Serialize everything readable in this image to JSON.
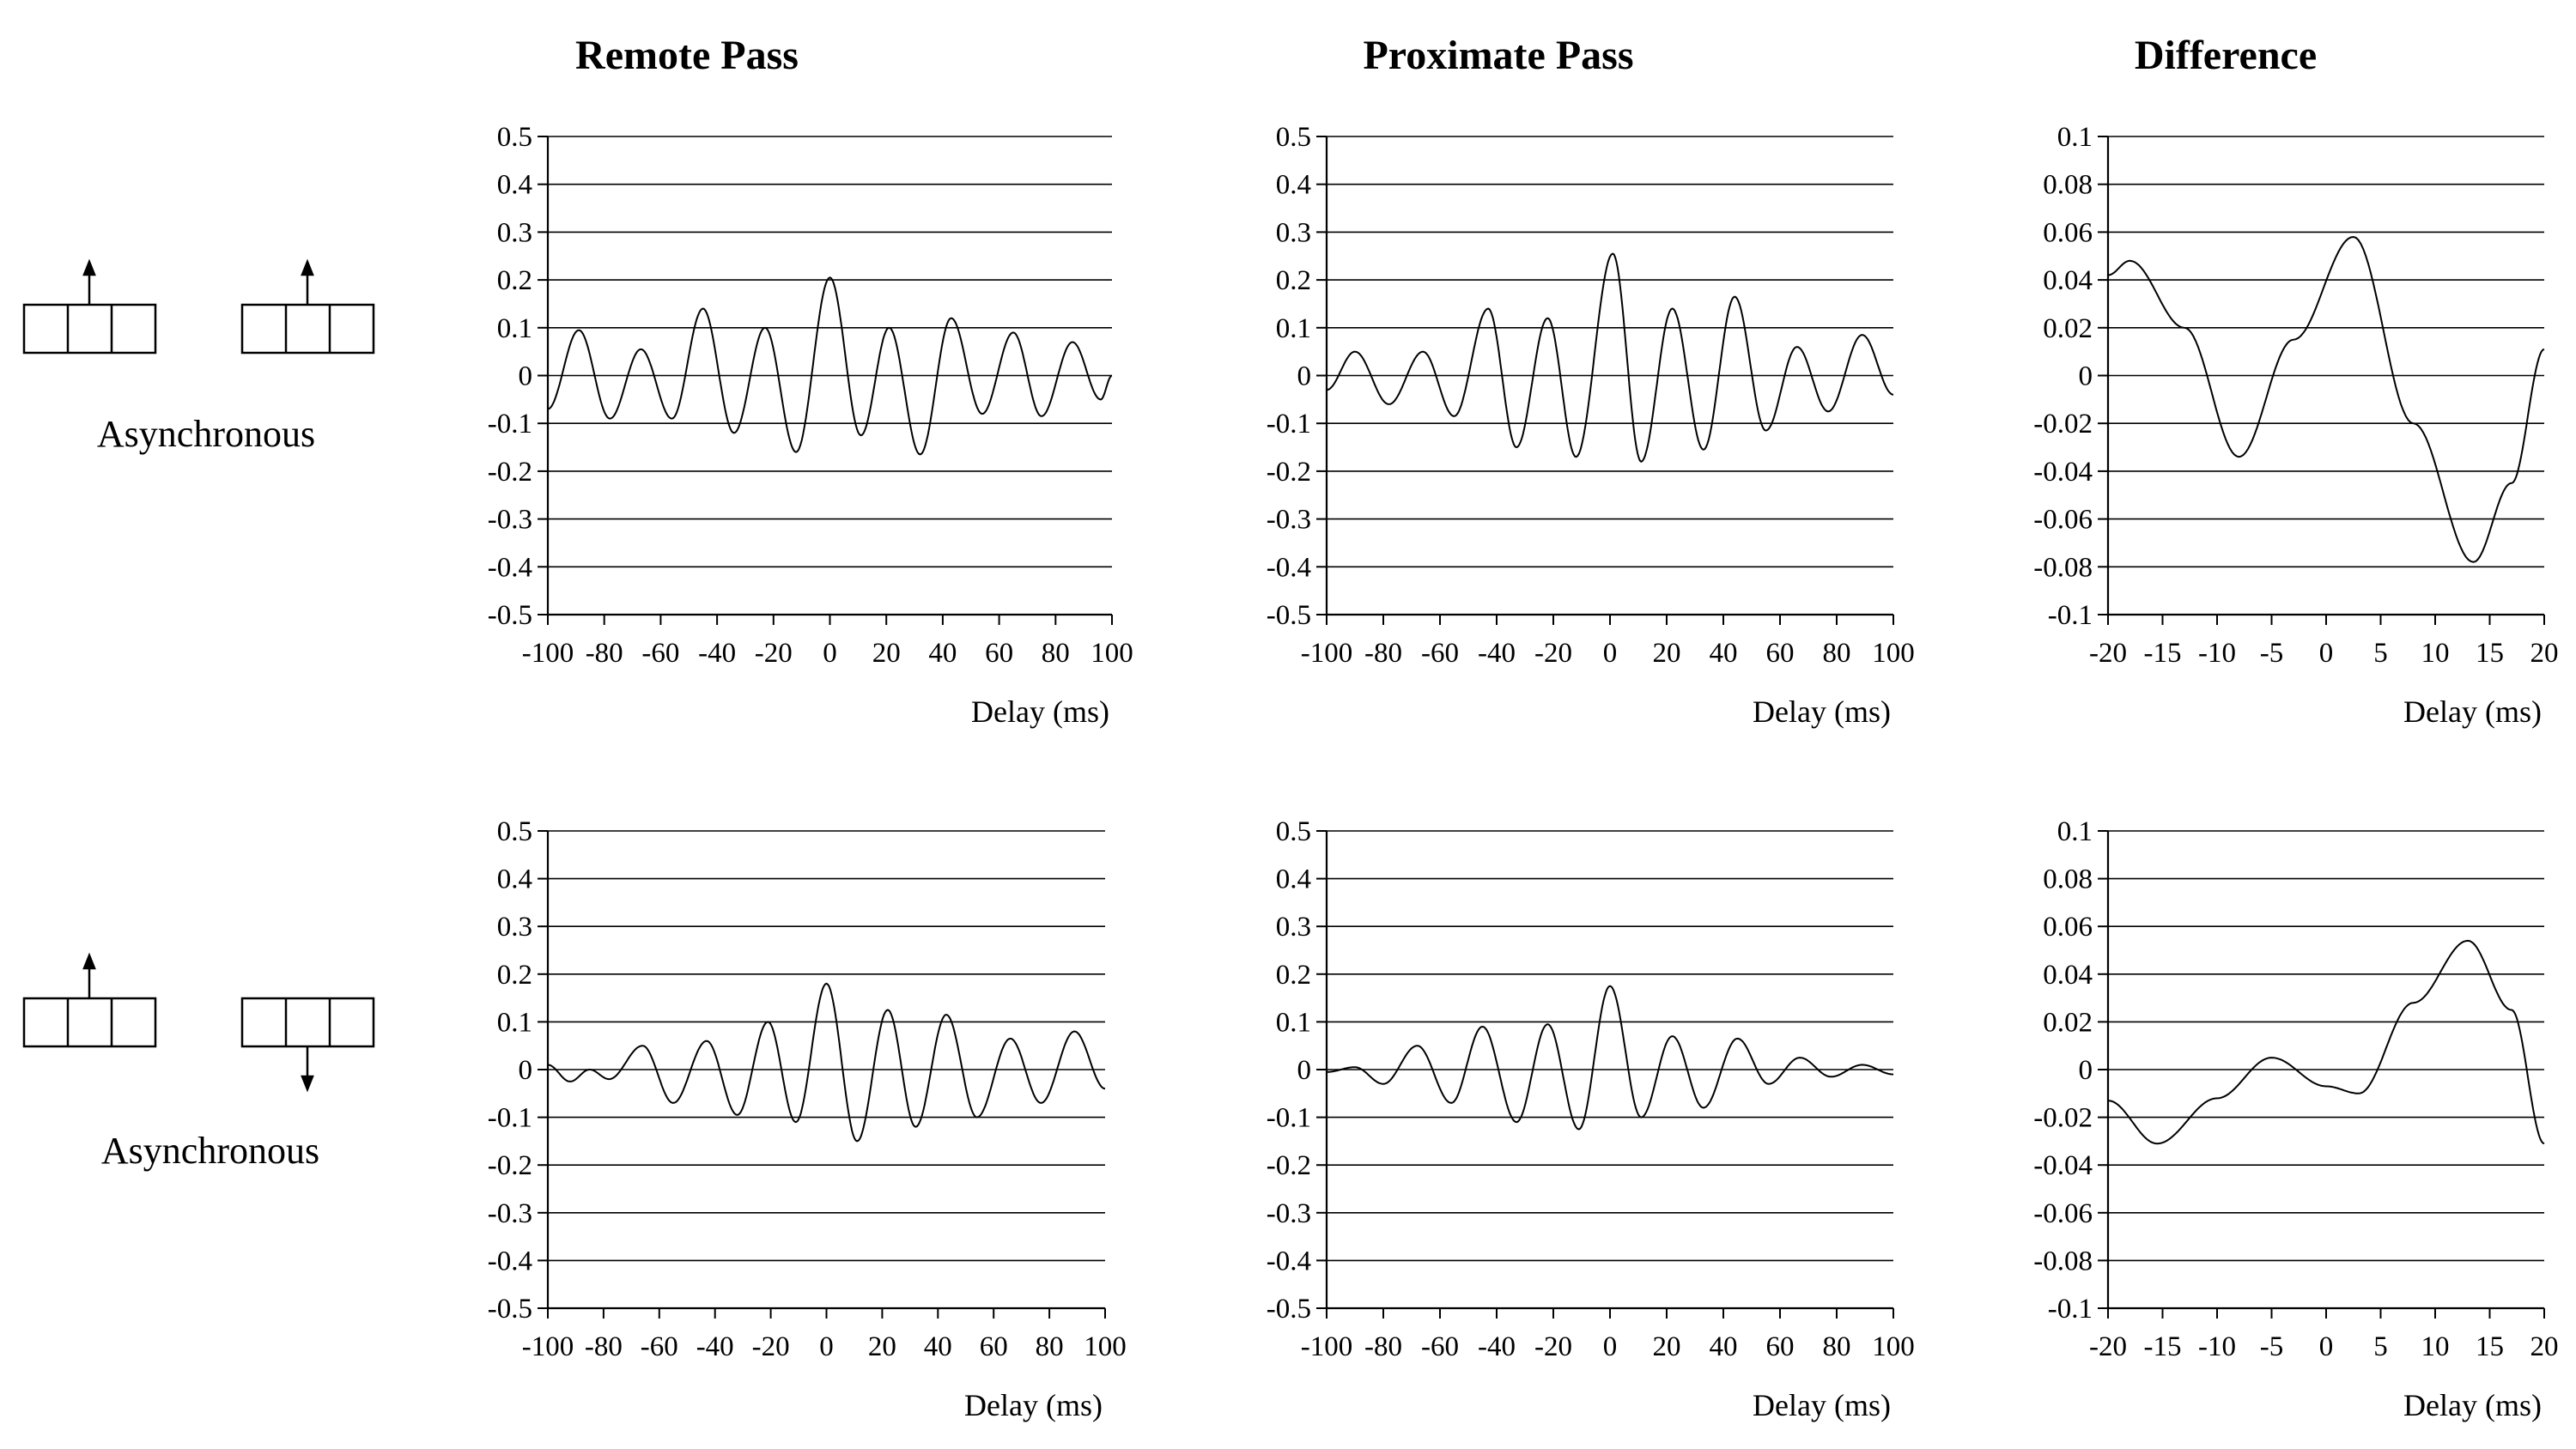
{
  "column_titles": [
    "Remote Pass",
    "Proximate Pass",
    "Difference"
  ],
  "row_labels": [
    "Asynchronous",
    "Asynchronous"
  ],
  "icons": [
    "cell-pair-both-up-arrows-icon",
    "cell-pair-up-down-arrows-icon"
  ],
  "chart_data": [
    {
      "type": "line",
      "title": "Remote Pass",
      "xlabel": "Delay (ms)",
      "ylabel": "",
      "xlim": [
        -100,
        100
      ],
      "ylim": [
        -0.5,
        0.5
      ],
      "xticks": [
        -100,
        -80,
        -60,
        -40,
        -20,
        0,
        20,
        40,
        60,
        80,
        100
      ],
      "yticks": [
        0.5,
        0.4,
        0.3,
        0.2,
        0.1,
        0,
        -0.1,
        -0.2,
        -0.3,
        -0.4,
        -0.5
      ],
      "grid": "horizontal",
      "series": [
        {
          "x": [
            -100,
            -89,
            -78,
            -67,
            -56,
            -45,
            -34,
            -23,
            -12,
            0,
            11,
            21,
            32,
            43,
            54,
            65,
            75,
            86,
            96,
            100
          ],
          "y": [
            -0.07,
            0.095,
            -0.09,
            0.055,
            -0.09,
            0.14,
            -0.12,
            0.1,
            -0.16,
            0.205,
            -0.125,
            0.1,
            -0.165,
            0.12,
            -0.08,
            0.09,
            -0.085,
            0.07,
            -0.05,
            0.0
          ]
        }
      ]
    },
    {
      "type": "line",
      "title": "Proximate Pass",
      "xlabel": "Delay (ms)",
      "ylabel": "",
      "xlim": [
        -100,
        100
      ],
      "ylim": [
        -0.5,
        0.5
      ],
      "xticks": [
        -100,
        -80,
        -60,
        -40,
        -20,
        0,
        20,
        40,
        60,
        80,
        100
      ],
      "yticks": [
        0.5,
        0.4,
        0.3,
        0.2,
        0.1,
        0,
        -0.1,
        -0.2,
        -0.3,
        -0.4,
        -0.5
      ],
      "grid": "horizontal",
      "series": [
        {
          "x": [
            -100,
            -90,
            -78,
            -66,
            -55,
            -43,
            -33,
            -22,
            -12,
            1,
            11,
            22,
            33,
            44,
            55,
            66,
            77,
            89,
            100
          ],
          "y": [
            -0.03,
            0.05,
            -0.06,
            0.05,
            -0.085,
            0.14,
            -0.15,
            0.12,
            -0.17,
            0.255,
            -0.18,
            0.14,
            -0.155,
            0.165,
            -0.115,
            0.06,
            -0.075,
            0.085,
            -0.04
          ]
        }
      ]
    },
    {
      "type": "line",
      "title": "Difference",
      "xlabel": "Delay (ms)",
      "ylabel": "",
      "xlim": [
        -20,
        20
      ],
      "ylim": [
        -0.1,
        0.1
      ],
      "xticks": [
        -20,
        -15,
        -10,
        -5,
        0,
        5,
        10,
        15,
        20
      ],
      "yticks": [
        0.1,
        0.08,
        0.06,
        0.04,
        0.02,
        0,
        -0.02,
        -0.04,
        -0.06,
        -0.08,
        -0.1
      ],
      "grid": "horizontal",
      "series": [
        {
          "x": [
            -20,
            -18,
            -13,
            -8,
            -3,
            2.5,
            8,
            13.5,
            17,
            20
          ],
          "y": [
            0.042,
            0.048,
            0.02,
            -0.034,
            0.015,
            0.058,
            -0.02,
            -0.078,
            -0.045,
            0.011
          ]
        }
      ]
    },
    {
      "type": "line",
      "title": "",
      "xlabel": "Delay (ms)",
      "ylabel": "",
      "xlim": [
        -100,
        100
      ],
      "ylim": [
        -0.5,
        0.5
      ],
      "xticks": [
        -100,
        -80,
        -60,
        -40,
        -20,
        0,
        20,
        40,
        60,
        80,
        100
      ],
      "yticks": [
        0.5,
        0.4,
        0.3,
        0.2,
        0.1,
        0,
        -0.1,
        -0.2,
        -0.3,
        -0.4,
        -0.5
      ],
      "grid": "horizontal",
      "series": [
        {
          "x": [
            -100,
            -92,
            -85,
            -78,
            -66,
            -55,
            -43,
            -32,
            -21,
            -11,
            0,
            11,
            22,
            32,
            43,
            54,
            66,
            77,
            89,
            100
          ],
          "y": [
            0.01,
            -0.025,
            0.0,
            -0.02,
            0.05,
            -0.07,
            0.06,
            -0.095,
            0.1,
            -0.11,
            0.18,
            -0.15,
            0.125,
            -0.12,
            0.115,
            -0.1,
            0.065,
            -0.07,
            0.08,
            -0.04
          ]
        }
      ]
    },
    {
      "type": "line",
      "title": "",
      "xlabel": "Delay (ms)",
      "ylabel": "",
      "xlim": [
        -100,
        100
      ],
      "ylim": [
        -0.5,
        0.5
      ],
      "xticks": [
        -100,
        -80,
        -60,
        -40,
        -20,
        0,
        20,
        40,
        60,
        80,
        100
      ],
      "yticks": [
        0.5,
        0.4,
        0.3,
        0.2,
        0.1,
        0,
        -0.1,
        -0.2,
        -0.3,
        -0.4,
        -0.5
      ],
      "grid": "horizontal",
      "series": [
        {
          "x": [
            -100,
            -90,
            -80,
            -68,
            -56,
            -45,
            -33,
            -22,
            -11,
            0,
            11,
            22,
            33,
            45,
            56,
            67,
            78,
            89,
            100
          ],
          "y": [
            -0.005,
            0.005,
            -0.03,
            0.05,
            -0.07,
            0.09,
            -0.11,
            0.095,
            -0.125,
            0.175,
            -0.1,
            0.07,
            -0.08,
            0.065,
            -0.03,
            0.025,
            -0.015,
            0.01,
            -0.01
          ]
        }
      ]
    },
    {
      "type": "line",
      "title": "",
      "xlabel": "Delay (ms)",
      "ylabel": "",
      "xlim": [
        -20,
        20
      ],
      "ylim": [
        -0.1,
        0.1
      ],
      "xticks": [
        -20,
        -15,
        -10,
        -5,
        0,
        5,
        10,
        15,
        20
      ],
      "yticks": [
        0.1,
        0.08,
        0.06,
        0.04,
        0.02,
        0,
        -0.02,
        -0.04,
        -0.06,
        -0.08,
        -0.1
      ],
      "grid": "horizontal",
      "series": [
        {
          "x": [
            -20,
            -15.5,
            -10,
            -5,
            0,
            3,
            8,
            13,
            17,
            20
          ],
          "y": [
            -0.013,
            -0.031,
            -0.012,
            0.005,
            -0.007,
            -0.01,
            0.028,
            0.054,
            0.025,
            -0.031
          ]
        }
      ]
    }
  ]
}
